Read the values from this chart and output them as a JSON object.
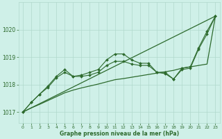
{
  "bg_color": "#cff0e8",
  "grid_color": "#b0d8cc",
  "line_color": "#2d6a2d",
  "straight_line": [
    [
      0,
      1017.0
    ],
    [
      23,
      1020.5
    ]
  ],
  "jagged_y": [
    1017.0,
    1017.35,
    1017.65,
    1017.95,
    1018.3,
    1018.55,
    1018.3,
    1018.35,
    1018.45,
    1018.55,
    1018.9,
    1019.12,
    1019.12,
    1018.9,
    1018.78,
    1018.78,
    1018.45,
    1018.45,
    1018.2,
    1018.6,
    1018.65,
    1019.35,
    1019.95,
    1020.5
  ],
  "smooth_y": [
    1017.0,
    1017.35,
    1017.65,
    1017.9,
    1018.25,
    1018.45,
    1018.3,
    1018.3,
    1018.35,
    1018.45,
    1018.7,
    1018.85,
    1018.85,
    1018.75,
    1018.7,
    1018.7,
    1018.45,
    1018.4,
    1018.2,
    1018.55,
    1018.6,
    1019.3,
    1019.85,
    1020.5
  ],
  "trend_y": [
    1017.0,
    1017.15,
    1017.28,
    1017.42,
    1017.56,
    1017.7,
    1017.8,
    1017.88,
    1017.95,
    1018.02,
    1018.1,
    1018.18,
    1018.22,
    1018.27,
    1018.32,
    1018.37,
    1018.42,
    1018.47,
    1018.52,
    1018.6,
    1018.65,
    1018.7,
    1018.75,
    1020.5
  ],
  "x": [
    0,
    1,
    2,
    3,
    4,
    5,
    6,
    7,
    8,
    9,
    10,
    11,
    12,
    13,
    14,
    15,
    16,
    17,
    18,
    19,
    20,
    21,
    22,
    23
  ],
  "yticks": [
    1017,
    1018,
    1019,
    1020
  ],
  "xtick_labels": [
    "0",
    "1",
    "2",
    "3",
    "4",
    "5",
    "6",
    "7",
    "8",
    "9",
    "10",
    "11",
    "12",
    "13",
    "14",
    "15",
    "16",
    "17",
    "18",
    "19",
    "20",
    "21",
    "22",
    "23"
  ],
  "xlabel": "Graphe pression niveau de la mer (hPa)",
  "ylim": [
    1016.6,
    1021.0
  ],
  "xlim": [
    -0.5,
    23.5
  ]
}
